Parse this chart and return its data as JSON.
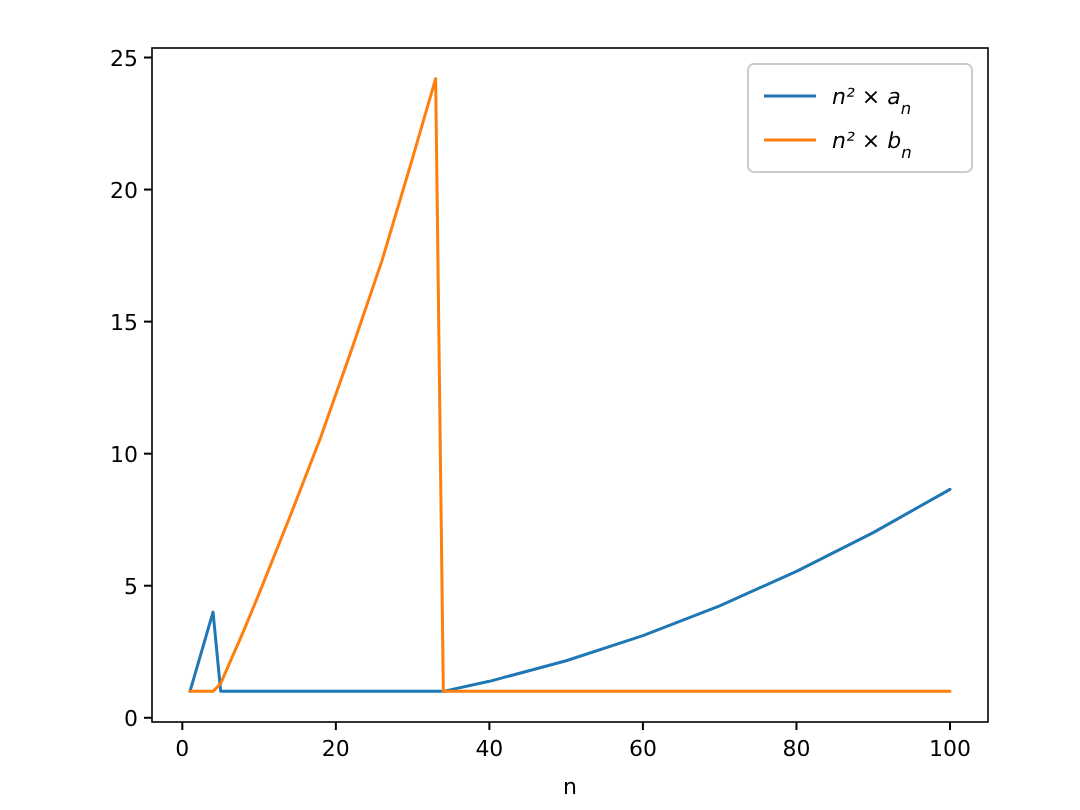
{
  "chart_data": {
    "type": "line",
    "xlabel": "n",
    "xlim": [
      -3.95,
      104.95
    ],
    "ylim": [
      -0.16,
      25.36
    ],
    "xticks": [
      0,
      20,
      40,
      60,
      80,
      100
    ],
    "yticks": [
      0,
      5,
      10,
      15,
      20,
      25
    ],
    "grid": false,
    "legend": "top right",
    "marker": "none",
    "line_style": "solid",
    "series": [
      {
        "name": "n² × a$_{n}$",
        "color": "#1f77b4",
        "x": [
          1,
          4,
          5,
          34,
          40,
          50,
          60,
          70,
          80,
          90,
          100
        ],
        "values": [
          1,
          4,
          1,
          1,
          1.38,
          2.16,
          3.11,
          4.24,
          5.54,
          7.01,
          8.65
        ]
      },
      {
        "name": "n² × b$_{n}$",
        "color": "#ff7f0e",
        "x": [
          1,
          4,
          5,
          8,
          10,
          14,
          18,
          22,
          26,
          30,
          33,
          34,
          100
        ],
        "values": [
          1,
          1,
          1.3,
          3.3,
          4.7,
          7.6,
          10.6,
          13.9,
          17.3,
          21.2,
          24.2,
          1,
          1
        ]
      }
    ]
  }
}
